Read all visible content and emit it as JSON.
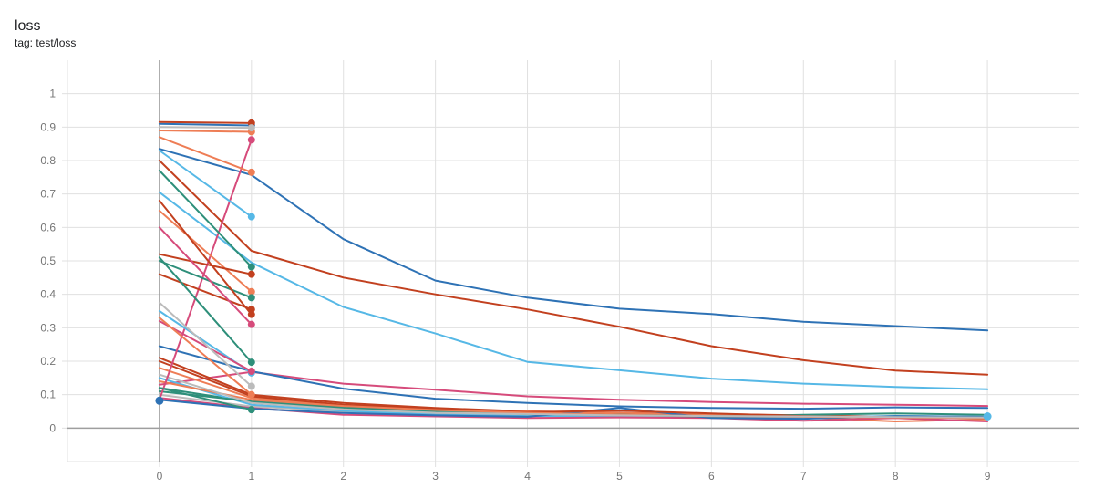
{
  "card": {
    "title": "loss",
    "tag": "tag: test/loss"
  },
  "chart_data": {
    "type": "line",
    "title": "loss",
    "subtitle": "tag: test/loss",
    "xlabel": "",
    "ylabel": "",
    "xlim": [
      -1,
      10
    ],
    "ylim": [
      -0.1,
      1.1
    ],
    "x_ticks": [
      0,
      1,
      2,
      3,
      4,
      5,
      6,
      7,
      8,
      9
    ],
    "y_ticks": [
      0,
      0.1,
      0.2,
      0.3,
      0.4,
      0.5,
      0.6,
      0.7,
      0.8,
      0.9,
      1
    ],
    "y_tick_labels": [
      "0",
      "0.1",
      "0.2",
      "0.3",
      "0.4",
      "0.5",
      "0.6",
      "0.7",
      "0.8",
      "0.9",
      "1"
    ],
    "grid": true,
    "legend": "none",
    "series": [
      {
        "color": "#2e72b5",
        "x": [
          0,
          1,
          2,
          3,
          4,
          5,
          6,
          7,
          8,
          9
        ],
        "values": [
          0.835,
          0.757,
          0.565,
          0.441,
          0.39,
          0.357,
          0.341,
          0.318,
          0.305,
          0.292
        ]
      },
      {
        "color": "#c2401f",
        "x": [
          0,
          1,
          2,
          3,
          4,
          5,
          6,
          7,
          8,
          9
        ],
        "values": [
          0.8,
          0.53,
          0.45,
          0.4,
          0.355,
          0.303,
          0.245,
          0.203,
          0.172,
          0.16
        ]
      },
      {
        "color": "#56b8e6",
        "x": [
          0,
          1,
          2,
          3,
          4,
          5,
          6,
          7,
          8,
          9
        ],
        "values": [
          0.705,
          0.495,
          0.362,
          0.283,
          0.198,
          0.173,
          0.148,
          0.133,
          0.123,
          0.116
        ]
      },
      {
        "color": "#d64b7b",
        "x": [
          0,
          1,
          2,
          3,
          4,
          5,
          6,
          7,
          8,
          9
        ],
        "values": [
          0.13,
          0.168,
          0.133,
          0.115,
          0.095,
          0.085,
          0.078,
          0.073,
          0.07,
          0.066
        ]
      },
      {
        "color": "#2e72b5",
        "x": [
          0,
          1,
          2,
          3,
          4,
          5,
          6,
          7,
          8,
          9
        ],
        "values": [
          0.245,
          0.17,
          0.118,
          0.088,
          0.075,
          0.065,
          0.06,
          0.058,
          0.062,
          0.06
        ]
      },
      {
        "color": "#c2401f",
        "x": [
          0,
          1,
          2,
          3,
          4,
          5,
          6,
          7,
          8,
          9
        ],
        "values": [
          0.21,
          0.1,
          0.075,
          0.06,
          0.05,
          0.045,
          0.042,
          0.038,
          0.034,
          0.032
        ]
      },
      {
        "color": "#ee7d55",
        "x": [
          0,
          1,
          2,
          3,
          4,
          5,
          6,
          7,
          8,
          9
        ],
        "values": [
          0.18,
          0.09,
          0.068,
          0.055,
          0.05,
          0.045,
          0.04,
          0.032,
          0.02,
          0.026
        ]
      },
      {
        "color": "#2e8f7a",
        "x": [
          0,
          1,
          2,
          3,
          4,
          5,
          6,
          7,
          8,
          9
        ],
        "values": [
          0.12,
          0.078,
          0.058,
          0.048,
          0.044,
          0.04,
          0.036,
          0.034,
          0.032,
          0.03
        ]
      },
      {
        "color": "#bbbbbb",
        "x": [
          0,
          1,
          2,
          3,
          4,
          5,
          6,
          7,
          8,
          9
        ],
        "values": [
          0.1,
          0.065,
          0.05,
          0.042,
          0.038,
          0.036,
          0.034,
          0.033,
          0.032,
          0.031
        ]
      },
      {
        "color": "#56b8e6",
        "x": [
          0,
          1,
          2,
          3,
          4,
          5,
          6,
          7,
          8,
          9
        ],
        "values": [
          0.15,
          0.07,
          0.052,
          0.04,
          0.036,
          0.034,
          0.033,
          0.032,
          0.036,
          0.034
        ]
      },
      {
        "color": "#d64b7b",
        "x": [
          0,
          1,
          2,
          3,
          4,
          5,
          6,
          7,
          8,
          9
        ],
        "values": [
          0.09,
          0.06,
          0.04,
          0.035,
          0.03,
          0.032,
          0.03,
          0.022,
          0.03,
          0.02
        ]
      },
      {
        "color": "#2e8f7a",
        "x": [
          0,
          1,
          2,
          3,
          4,
          5,
          6,
          7,
          8,
          9
        ],
        "values": [
          0.11,
          0.08,
          0.062,
          0.05,
          0.042,
          0.04,
          0.034,
          0.04,
          0.044,
          0.04
        ]
      },
      {
        "color": "#2e72b5",
        "x": [
          0,
          1,
          2,
          3,
          4,
          5,
          6,
          7,
          8,
          9
        ],
        "values": [
          0.085,
          0.058,
          0.045,
          0.038,
          0.034,
          0.06,
          0.03,
          0.028,
          0.036,
          0.034
        ]
      },
      {
        "color": "#c2401f",
        "x": [
          0,
          1,
          2,
          3,
          4,
          5,
          6,
          7,
          8,
          9
        ],
        "values": [
          0.2,
          0.095,
          0.07,
          0.058,
          0.048,
          0.052,
          0.044,
          0.036,
          0.032,
          0.03
        ]
      },
      {
        "color": "#ee7d55",
        "x": [
          0,
          1,
          2,
          3,
          4,
          5,
          6,
          7,
          8,
          9
        ],
        "values": [
          0.14,
          0.085,
          0.066,
          0.054,
          0.046,
          0.04,
          0.036,
          0.034,
          0.032,
          0.03
        ]
      },
      {
        "color": "#bbbbbb",
        "x": [
          0,
          1,
          2,
          3,
          4,
          5,
          6,
          7,
          8,
          9
        ],
        "values": [
          0.16,
          0.075,
          0.056,
          0.046,
          0.042,
          0.038,
          0.036,
          0.035,
          0.033,
          0.032
        ]
      },
      {
        "color": "#d64b7b",
        "x": [
          0,
          1
        ],
        "values": [
          0.085,
          0.862
        ]
      },
      {
        "color": "#56b8e6",
        "x": [
          0,
          1
        ],
        "values": [
          0.83,
          0.632
        ]
      },
      {
        "color": "#ee7d55",
        "x": [
          0,
          1
        ],
        "values": [
          0.87,
          0.765
        ]
      },
      {
        "color": "#2e8f7a",
        "x": [
          0,
          1
        ],
        "values": [
          0.77,
          0.482
        ]
      },
      {
        "color": "#ee7d55",
        "x": [
          0,
          1
        ],
        "values": [
          0.65,
          0.408
        ]
      },
      {
        "color": "#c2401f",
        "x": [
          0,
          1
        ],
        "values": [
          0.52,
          0.46
        ]
      },
      {
        "color": "#2e8f7a",
        "x": [
          0,
          1
        ],
        "values": [
          0.5,
          0.39
        ]
      },
      {
        "color": "#c2401f",
        "x": [
          0,
          1
        ],
        "values": [
          0.46,
          0.355
        ]
      },
      {
        "color": "#c2401f",
        "x": [
          0,
          1
        ],
        "values": [
          0.68,
          0.34
        ]
      },
      {
        "color": "#d64b7b",
        "x": [
          0,
          1
        ],
        "values": [
          0.6,
          0.31
        ]
      },
      {
        "color": "#2e8f7a",
        "x": [
          0,
          1
        ],
        "values": [
          0.51,
          0.197
        ]
      },
      {
        "color": "#56b8e6",
        "x": [
          0,
          1
        ],
        "values": [
          0.35,
          0.165
        ]
      },
      {
        "color": "#d64b7b",
        "x": [
          0,
          1
        ],
        "values": [
          0.32,
          0.17
        ]
      },
      {
        "color": "#bbbbbb",
        "x": [
          0,
          1
        ],
        "values": [
          0.375,
          0.125
        ]
      },
      {
        "color": "#2e72b5",
        "x": [
          0,
          1
        ],
        "values": [
          0.91,
          0.905
        ]
      },
      {
        "color": "#c2401f",
        "x": [
          0,
          1
        ],
        "values": [
          0.915,
          0.912
        ]
      },
      {
        "color": "#ee7d55",
        "x": [
          0,
          1
        ],
        "values": [
          0.89,
          0.886
        ]
      },
      {
        "color": "#bbbbbb",
        "x": [
          0,
          1
        ],
        "values": [
          0.9,
          0.898
        ]
      },
      {
        "color": "#2e8f7a",
        "x": [
          0,
          1
        ],
        "values": [
          0.12,
          0.055
        ]
      },
      {
        "color": "#ee7d55",
        "x": [
          0,
          1
        ],
        "values": [
          0.33,
          0.1
        ]
      }
    ],
    "end_markers": [
      {
        "x": 0,
        "y": 0.082,
        "color": "#2e72b5"
      },
      {
        "x": 9,
        "y": 0.035,
        "color": "#56b8e6"
      }
    ]
  }
}
